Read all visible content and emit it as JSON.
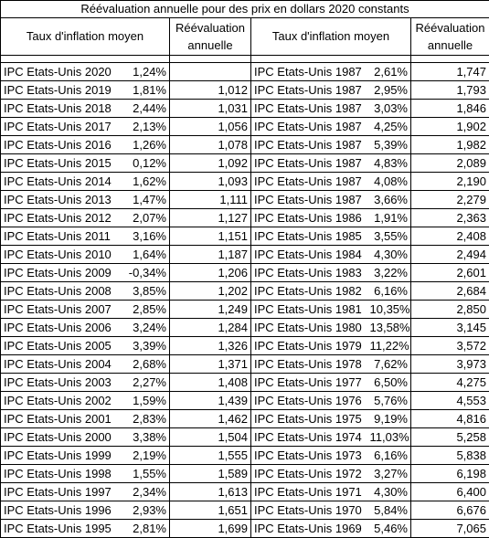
{
  "title": "Réévaluation annuelle pour des prix en dollars 2020 constants",
  "headers": {
    "left_taux": "Taux d'inflation moyen",
    "left_reevaluation": [
      "Réévaluation",
      "annuelle"
    ],
    "right_taux": "Taux d'inflation moyen",
    "right_reevaluation": [
      "Réévaluation",
      "annuelle"
    ]
  },
  "rows": [
    {
      "l_label": "IPC Etats-Unis 2020",
      "l_rate": "1,24%",
      "l_val": "",
      "r_label": "IPC Etats-Unis 1987",
      "r_rate": "2,61%",
      "r_val": "1,747"
    },
    {
      "l_label": "IPC Etats-Unis 2019",
      "l_rate": "1,81%",
      "l_val": "1,012",
      "r_label": "IPC Etats-Unis 1987",
      "r_rate": "2,95%",
      "r_val": "1,793"
    },
    {
      "l_label": "IPC Etats-Unis 2018",
      "l_rate": "2,44%",
      "l_val": "1,031",
      "r_label": "IPC Etats-Unis 1987",
      "r_rate": "3,03%",
      "r_val": "1,846"
    },
    {
      "l_label": "IPC Etats-Unis 2017",
      "l_rate": "2,13%",
      "l_val": "1,056",
      "r_label": "IPC Etats-Unis 1987",
      "r_rate": "4,25%",
      "r_val": "1,902"
    },
    {
      "l_label": "IPC Etats-Unis 2016",
      "l_rate": "1,26%",
      "l_val": "1,078",
      "r_label": "IPC Etats-Unis 1987",
      "r_rate": "5,39%",
      "r_val": "1,982"
    },
    {
      "l_label": "IPC Etats-Unis 2015",
      "l_rate": "0,12%",
      "l_val": "1,092",
      "r_label": "IPC Etats-Unis 1987",
      "r_rate": "4,83%",
      "r_val": "2,089"
    },
    {
      "l_label": "IPC Etats-Unis 2014",
      "l_rate": "1,62%",
      "l_val": "1,093",
      "r_label": "IPC Etats-Unis 1987",
      "r_rate": "4,08%",
      "r_val": "2,190"
    },
    {
      "l_label": "IPC Etats-Unis 2013",
      "l_rate": "1,47%",
      "l_val": "1,111",
      "r_label": "IPC Etats-Unis 1987",
      "r_rate": "3,66%",
      "r_val": "2,279"
    },
    {
      "l_label": "IPC Etats-Unis 2012",
      "l_rate": "2,07%",
      "l_val": "1,127",
      "r_label": "IPC Etats-Unis 1986",
      "r_rate": "1,91%",
      "r_val": "2,363"
    },
    {
      "l_label": "IPC Etats-Unis 2011",
      "l_rate": "3,16%",
      "l_val": "1,151",
      "r_label": "IPC Etats-Unis 1985",
      "r_rate": "3,55%",
      "r_val": "2,408"
    },
    {
      "l_label": "IPC Etats-Unis 2010",
      "l_rate": "1,64%",
      "l_val": "1,187",
      "r_label": "IPC Etats-Unis 1984",
      "r_rate": "4,30%",
      "r_val": "2,494"
    },
    {
      "l_label": "IPC Etats-Unis 2009",
      "l_rate": "-0,34%",
      "l_val": "1,206",
      "r_label": "IPC Etats-Unis 1983",
      "r_rate": "3,22%",
      "r_val": "2,601"
    },
    {
      "l_label": "IPC Etats-Unis 2008",
      "l_rate": "3,85%",
      "l_val": "1,202",
      "r_label": "IPC Etats-Unis 1982",
      "r_rate": "6,16%",
      "r_val": "2,684"
    },
    {
      "l_label": "IPC Etats-Unis 2007",
      "l_rate": "2,85%",
      "l_val": "1,249",
      "r_label": "IPC Etats-Unis 1981",
      "r_rate": "10,35%",
      "r_val": "2,850"
    },
    {
      "l_label": "IPC Etats-Unis 2006",
      "l_rate": "3,24%",
      "l_val": "1,284",
      "r_label": "IPC Etats-Unis 1980",
      "r_rate": "13,58%",
      "r_val": "3,145"
    },
    {
      "l_label": "IPC Etats-Unis 2005",
      "l_rate": "3,39%",
      "l_val": "1,326",
      "r_label": "IPC Etats-Unis 1979",
      "r_rate": "11,22%",
      "r_val": "3,572"
    },
    {
      "l_label": "IPC Etats-Unis 2004",
      "l_rate": "2,68%",
      "l_val": "1,371",
      "r_label": "IPC Etats-Unis 1978",
      "r_rate": "7,62%",
      "r_val": "3,973"
    },
    {
      "l_label": "IPC Etats-Unis 2003",
      "l_rate": "2,27%",
      "l_val": "1,408",
      "r_label": "IPC Etats-Unis 1977",
      "r_rate": "6,50%",
      "r_val": "4,275"
    },
    {
      "l_label": "IPC Etats-Unis 2002",
      "l_rate": "1,59%",
      "l_val": "1,439",
      "r_label": "IPC Etats-Unis 1976",
      "r_rate": "5,76%",
      "r_val": "4,553"
    },
    {
      "l_label": "IPC Etats-Unis 2001",
      "l_rate": "2,83%",
      "l_val": "1,462",
      "r_label": "IPC Etats-Unis 1975",
      "r_rate": "9,19%",
      "r_val": "4,816"
    },
    {
      "l_label": "IPC Etats-Unis 2000",
      "l_rate": "3,38%",
      "l_val": "1,504",
      "r_label": "IPC Etats-Unis 1974",
      "r_rate": "11,03%",
      "r_val": "5,258"
    },
    {
      "l_label": "IPC Etats-Unis 1999",
      "l_rate": "2,19%",
      "l_val": "1,555",
      "r_label": "IPC Etats-Unis 1973",
      "r_rate": "6,16%",
      "r_val": "5,838"
    },
    {
      "l_label": "IPC Etats-Unis 1998",
      "l_rate": "1,55%",
      "l_val": "1,589",
      "r_label": "IPC Etats-Unis 1972",
      "r_rate": "3,27%",
      "r_val": "6,198"
    },
    {
      "l_label": "IPC Etats-Unis 1997",
      "l_rate": "2,34%",
      "l_val": "1,613",
      "r_label": "IPC Etats-Unis 1971",
      "r_rate": "4,30%",
      "r_val": "6,400"
    },
    {
      "l_label": "IPC Etats-Unis 1996",
      "l_rate": "2,93%",
      "l_val": "1,651",
      "r_label": "IPC Etats-Unis 1970",
      "r_rate": "5,84%",
      "r_val": "6,676"
    },
    {
      "l_label": "IPC Etats-Unis 1995",
      "l_rate": "2,81%",
      "l_val": "1,699",
      "r_label": "IPC Etats-Unis 1969",
      "r_rate": "5,46%",
      "r_val": "7,065"
    }
  ]
}
